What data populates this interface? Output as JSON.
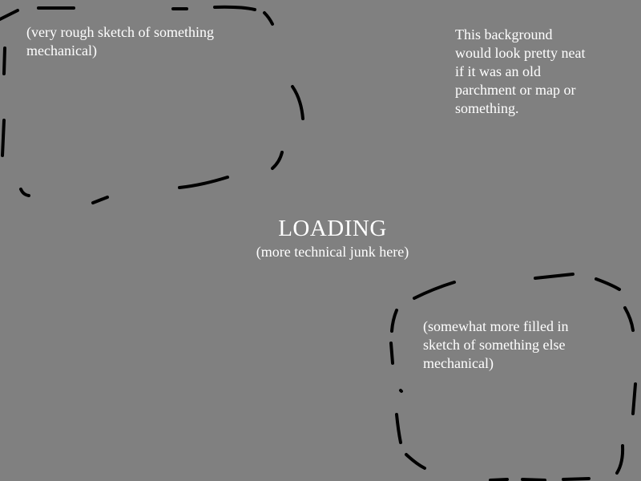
{
  "screen": {
    "background_color": "#808080",
    "text_color": "#ffffff",
    "sketch_stroke_color": "#000000"
  },
  "loading": {
    "title": "LOADING",
    "subtitle": "(more technical junk here)"
  },
  "sketch_1": {
    "label_lines": [
      "(very rough sketch of something",
      "mechanical)"
    ]
  },
  "background_note": {
    "lines": [
      "This background",
      "would look pretty neat",
      "if it was an old",
      "parchment or map or",
      "something."
    ]
  },
  "sketch_2": {
    "label_lines": [
      "(somewhat more filled in",
      "sketch of something else",
      "mechanical)"
    ]
  }
}
